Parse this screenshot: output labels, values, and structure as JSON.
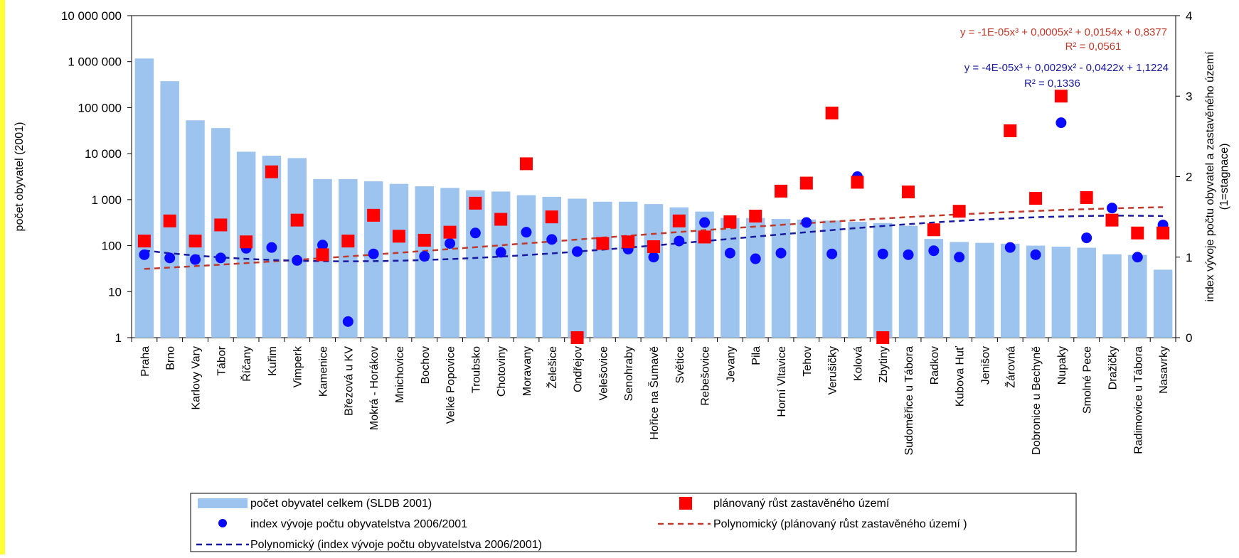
{
  "colors": {
    "bars": "#9dc3ef",
    "index_points": "#0a0aff",
    "growth_points": "#ff0000",
    "trend_growth": "#c0392b",
    "trend_index": "#1a1aa0",
    "axis": "#000000",
    "edge": "#ffff33"
  },
  "chart_data": {
    "type": "bar",
    "categories": [
      "Praha",
      "Brno",
      "Karlovy Vary",
      "Tábor",
      "Říčany",
      "Kuřim",
      "Vimperk",
      "Kamenice",
      "Březová u KV",
      "Mokrá - Horákov",
      "Mnichovice",
      "Bochov",
      "Velké Popovice",
      "Troubsko",
      "Chotoviny",
      "Moravany",
      "Želešice",
      "Ondřejov",
      "Velešovice",
      "Senohraby",
      "Hořice na Šumavě",
      "Světice",
      "Rebešovice",
      "Jevany",
      "Pila",
      "Horní Vltavice",
      "Tehov",
      "Verušičky",
      "Kolová",
      "Zbytiny",
      "Sudoměřice u Tábora",
      "Radkov",
      "Kubova Huť",
      "Jenišov",
      "Žárovná",
      "Dobronice u Bechyně",
      "Nupaky",
      "Smolné Pece",
      "Dražičky",
      "Radimovice u Tábora",
      "Nasavrky"
    ],
    "y_left": {
      "label": "počet obyvatel (2001)",
      "scale": "log",
      "range": [
        1,
        10000000
      ],
      "ticks": [
        {
          "value": 1,
          "label": "1"
        },
        {
          "value": 10,
          "label": "10"
        },
        {
          "value": 100,
          "label": "100"
        },
        {
          "value": 1000,
          "label": "1 000"
        },
        {
          "value": 10000,
          "label": "10 000"
        },
        {
          "value": 100000,
          "label": "100 000"
        },
        {
          "value": 1000000,
          "label": "1 000 000"
        },
        {
          "value": 10000000,
          "label": "10 000 000"
        }
      ]
    },
    "y_right": {
      "label": "index vývoje počtu obyvatel a zastavěného území (1=stagnace)",
      "label_lines": [
        "index vývoje počtu obyvatel a zastavěného území",
        "(1=stagnace)"
      ],
      "scale": "linear",
      "range": [
        0,
        4
      ],
      "ticks": [
        {
          "value": 0,
          "label": "0"
        },
        {
          "value": 1,
          "label": "1"
        },
        {
          "value": 2,
          "label": "2"
        },
        {
          "value": 3,
          "label": "3"
        },
        {
          "value": 4,
          "label": "4"
        }
      ]
    },
    "series": [
      {
        "name": "počet obyvatel celkem (SLDB 2001)",
        "type": "bar",
        "axis": "left",
        "values": [
          1170000,
          376000,
          53000,
          36000,
          11000,
          9000,
          8000,
          2800,
          2800,
          2500,
          2200,
          1950,
          1800,
          1600,
          1500,
          1250,
          1150,
          1050,
          900,
          900,
          800,
          680,
          550,
          400,
          400,
          380,
          370,
          350,
          330,
          310,
          270,
          140,
          120,
          115,
          110,
          100,
          95,
          90,
          65,
          63,
          30
        ]
      },
      {
        "name": "index vývoje počtu obyvatelstva 2006/2001",
        "type": "scatter",
        "axis": "right",
        "values": [
          1.03,
          0.99,
          0.97,
          0.99,
          1.11,
          1.12,
          0.96,
          1.15,
          0.2,
          1.04,
          1.25,
          1.01,
          1.17,
          1.3,
          1.06,
          1.31,
          1.22,
          1.07,
          1.16,
          1.1,
          1.0,
          1.2,
          1.43,
          1.05,
          0.98,
          1.05,
          1.43,
          1.04,
          2.0,
          1.04,
          1.03,
          1.08,
          1.0,
          null,
          1.12,
          1.03,
          2.67,
          1.24,
          1.61,
          1.0,
          1.4
        ]
      },
      {
        "name": "plánovaný růst zastavěného území",
        "type": "scatter",
        "axis": "right",
        "values": [
          1.2,
          1.45,
          1.2,
          1.4,
          1.19,
          2.06,
          1.46,
          1.03,
          1.2,
          1.52,
          1.26,
          1.21,
          1.31,
          1.67,
          1.47,
          2.16,
          1.5,
          0.0,
          1.17,
          1.19,
          1.13,
          1.45,
          1.25,
          1.44,
          1.51,
          1.82,
          1.92,
          2.79,
          1.93,
          0.0,
          1.81,
          1.34,
          1.57,
          null,
          2.57,
          1.73,
          3.0,
          1.74,
          1.46,
          1.3,
          1.3
        ]
      }
    ],
    "trendlines": [
      {
        "name": "Polynomický (plánovaný růst zastavěného území )",
        "of": "plánovaný růst zastavěného území",
        "type": "polynomial",
        "coefficients": [
          -1e-05,
          0.0005,
          0.0154,
          0.8377
        ],
        "equation": "y = -1E-05x³ + 0,0005x² + 0,0154x + 0,8377",
        "r2": "R² = 0,0561"
      },
      {
        "name": "Polynomický (index vývoje počtu obyvatelstva 2006/2001)",
        "of": "index vývoje počtu obyvatelstva 2006/2001",
        "type": "polynomial",
        "coefficients": [
          -4e-05,
          0.0029,
          -0.0422,
          1.1224
        ],
        "equation": "y = -4E-05x³ + 0,0029x² - 0,0422x + 1,1224",
        "r2": "R² = 0,1336"
      }
    ],
    "legend": {
      "placement": "bottom",
      "entries": [
        "počet obyvatel celkem (SLDB 2001)",
        "plánovaný růst zastavěného území",
        "index vývoje počtu obyvatelstva 2006/2001",
        "Polynomický (plánovaný růst zastavěného území )",
        "Polynomický (index vývoje počtu obyvatelstva 2006/2001)"
      ]
    },
    "grid": false
  }
}
